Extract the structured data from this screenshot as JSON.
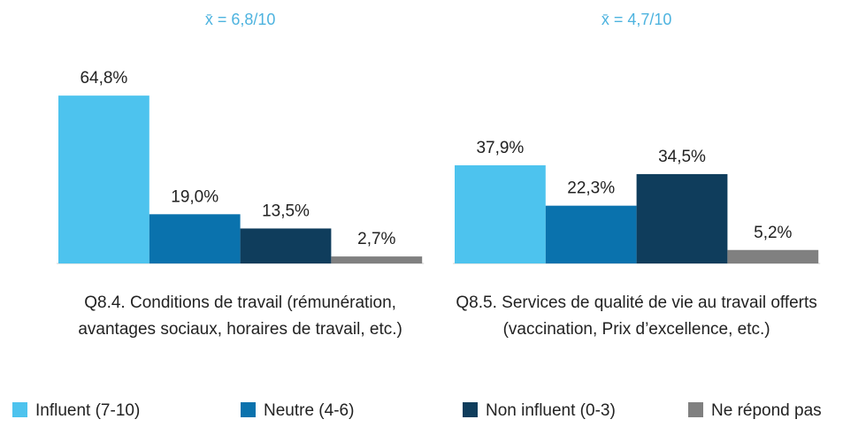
{
  "chart_data": {
    "type": "bar",
    "annotations": [
      "x̄ = 6,8/10",
      "x̄ = 4,7/10"
    ],
    "categories": [
      "Q8.4. Conditions de travail (rémunération, avantages sociaux, horaires de travail, etc.)",
      "Q8.5. Services de qualité de vie au travail offerts (vaccination, Prix d’excellence, etc.)"
    ],
    "series": [
      {
        "name": "Influent (7-10)",
        "color": "#4dc3ee",
        "values": [
          64.8,
          37.9
        ],
        "value_labels": [
          "64,8%",
          "37,9%"
        ]
      },
      {
        "name": "Neutre (4-6)",
        "color": "#0a72ad",
        "values": [
          19.0,
          22.3
        ],
        "value_labels": [
          "19,0%",
          "22,3%"
        ]
      },
      {
        "name": "Non influent (0-3)",
        "color": "#0f3d5c",
        "values": [
          13.5,
          34.5
        ],
        "value_labels": [
          "13,5%",
          "34,5%"
        ]
      },
      {
        "name": "Ne répond pas",
        "color": "#808080",
        "values": [
          2.7,
          5.2
        ],
        "value_labels": [
          "2,7%",
          "5,2%"
        ]
      }
    ],
    "legend": "bottom"
  }
}
